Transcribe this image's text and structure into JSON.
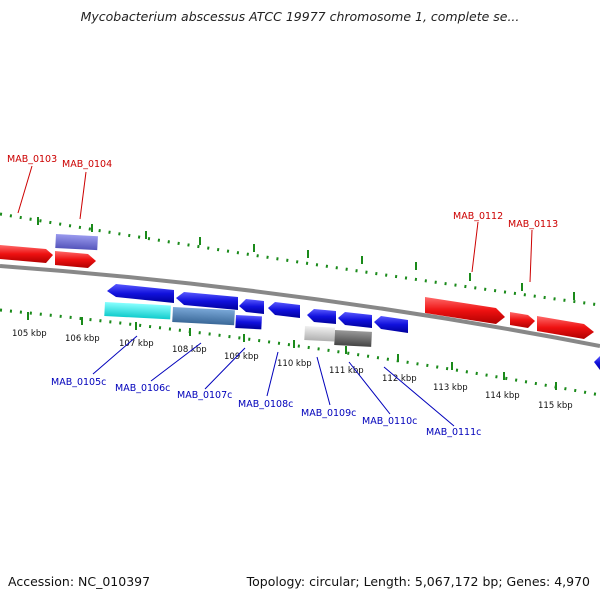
{
  "title": "Mycobacterium abscessus ATCC 19977 chromosome 1, complete se...",
  "footer": {
    "accession": "Accession: NC_010397",
    "summary": "Topology: circular; Length: 5,067,172 bp; Genes: 4,970"
  },
  "colors": {
    "forward_gene": "#ee1111",
    "reverse_gene": "#1111dd",
    "backbone": "#8a8a8a",
    "ticks": "#1a8a1a",
    "forward_label": "#cc0000",
    "reverse_label": "#0000bb"
  },
  "ruler": {
    "tick_labels": [
      "105 kbp",
      "106 kbp",
      "107 kbp",
      "108 kbp",
      "109 kbp",
      "110 kbp",
      "111 kbp",
      "112 kbp",
      "113 kbp",
      "114 kbp",
      "115 kbp"
    ]
  },
  "gene_labels": {
    "forward": [
      "MAB_0103",
      "MAB_0104",
      "MAB_0112",
      "MAB_0113"
    ],
    "reverse": [
      "MAB_0105c",
      "MAB_0106c",
      "MAB_0107c",
      "MAB_0108c",
      "MAB_0109c",
      "MAB_0110c",
      "MAB_0111c"
    ]
  }
}
